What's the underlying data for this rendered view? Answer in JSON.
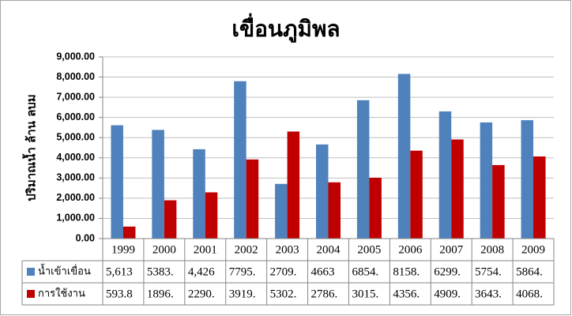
{
  "chart_data": {
    "type": "bar",
    "title": "เขื่อนภูมิพล",
    "y_label": "ปริมาณน้ำ ล้าน ลบม",
    "categories": [
      "1999",
      "2000",
      "2001",
      "2002",
      "2003",
      "2004",
      "2005",
      "2006",
      "2007",
      "2008",
      "2009"
    ],
    "series": [
      {
        "name": "น้ำเข้าเขื่อน",
        "color": "#4f81bd",
        "values": [
          5613,
          5383,
          4426,
          7795,
          2709,
          4663,
          6854,
          8158,
          6299,
          5754,
          5864
        ],
        "value_labels": [
          "5,613",
          "5383.",
          "4,426",
          "7795.",
          "2709.",
          "4663",
          "6854.",
          "8158.",
          "6299.",
          "5754.",
          "5864."
        ]
      },
      {
        "name": "การใช้งาน",
        "color": "#c00000",
        "values": [
          593.8,
          1896,
          2290,
          3919,
          5302,
          2786,
          3015,
          4356,
          4909,
          3643,
          4068
        ],
        "value_labels": [
          "593.8",
          "1896.",
          "2290.",
          "3919.",
          "5302.",
          "2786.",
          "3015.",
          "4356.",
          "4909.",
          "3643.",
          "4068."
        ]
      }
    ],
    "ylim": [
      0,
      9000
    ],
    "yticks": [
      {
        "value": 0,
        "label": "0.00"
      },
      {
        "value": 1000,
        "label": "1,000.00"
      },
      {
        "value": 2000,
        "label": "2,000.00"
      },
      {
        "value": 3000,
        "label": "3,000.00"
      },
      {
        "value": 4000,
        "label": "4,000.00"
      },
      {
        "value": 5000,
        "label": "5,000.00"
      },
      {
        "value": 6000,
        "label": "6,000.00"
      },
      {
        "value": 7000,
        "label": "7,000.00"
      },
      {
        "value": 8000,
        "label": "8,000.00"
      },
      {
        "value": 9000,
        "label": "9,000.00"
      }
    ],
    "grid": true,
    "data_table": true
  }
}
